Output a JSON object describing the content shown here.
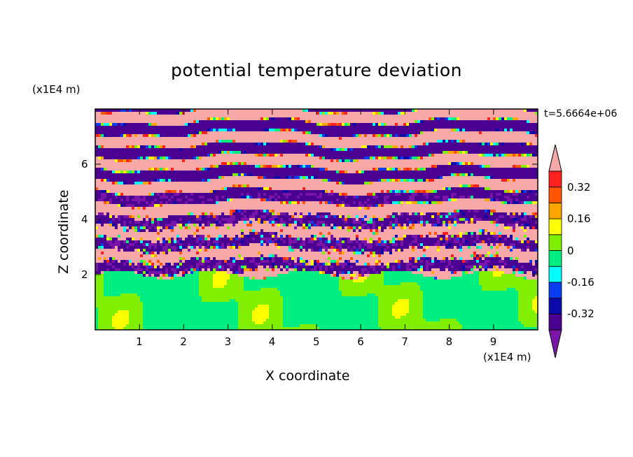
{
  "chart_data": {
    "type": "heatmap",
    "title": "potential temperature deviation",
    "xlabel": "X coordinate",
    "ylabel": "Z coordinate",
    "x_unit": "(x1E4 m)",
    "y_unit": "(x1E4 m)",
    "time_label": "t=5.6664e+06",
    "xlim": [
      0,
      10
    ],
    "ylim": [
      0,
      8
    ],
    "x_ticks": [
      "1",
      "2",
      "3",
      "4",
      "5",
      "6",
      "7",
      "8",
      "9"
    ],
    "y_ticks": [
      "2",
      "4",
      "6"
    ],
    "colorbar": {
      "tick_labels": [
        "0.32",
        "0.16",
        "0",
        "-0.16",
        "-0.32"
      ],
      "tick_values": [
        0.32,
        0.16,
        0,
        -0.16,
        -0.32
      ],
      "levels": [
        -0.4,
        -0.32,
        -0.24,
        -0.16,
        -0.08,
        0,
        0.08,
        0.16,
        0.24,
        0.32,
        0.4
      ],
      "colors": [
        "#7b14a8",
        "#4a0090",
        "#0a0aa8",
        "#0a3cf0",
        "#00ffff",
        "#00ee82",
        "#80f000",
        "#ffff00",
        "#ffa500",
        "#ff5500",
        "#ff2020",
        "#f8a8a8"
      ],
      "extend": "both"
    },
    "description_regions": {
      "lower_layer_top_z": 2,
      "lower_layer_values": [
        0,
        0.08
      ],
      "upper_layer_values": [
        -0.4,
        0.4
      ]
    }
  }
}
